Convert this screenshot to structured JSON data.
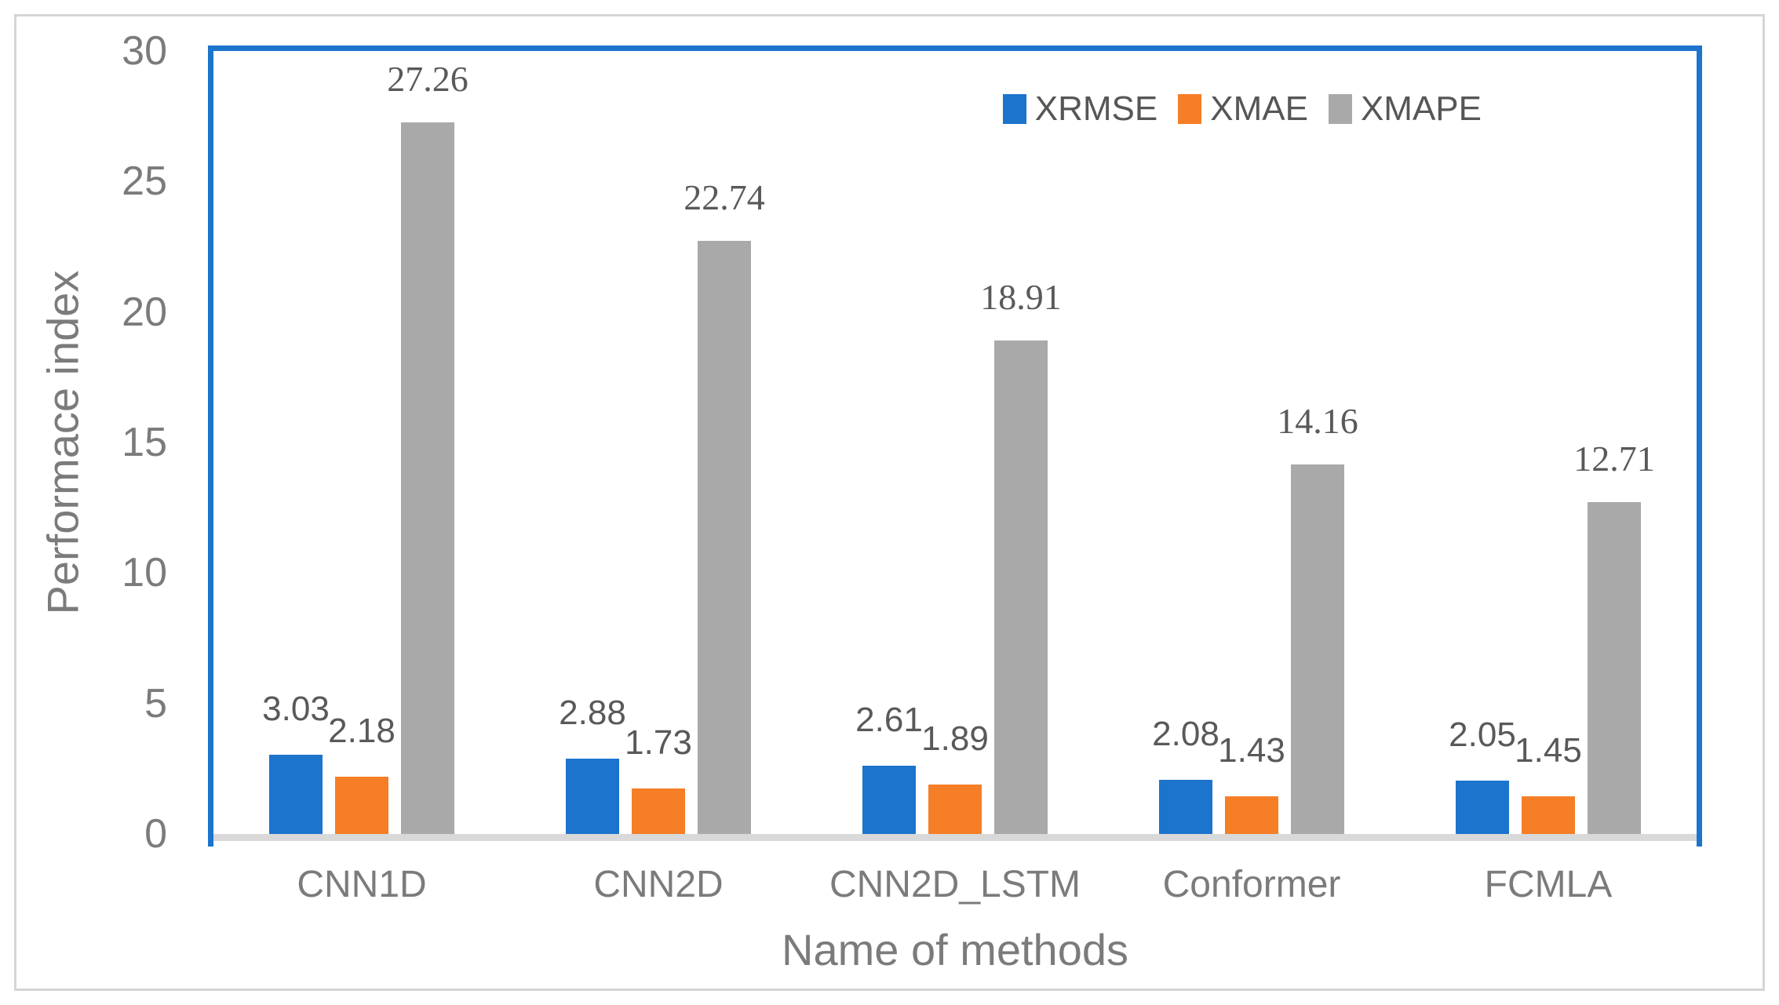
{
  "chart_data": {
    "type": "bar",
    "title": "",
    "xlabel": "Name of methods",
    "ylabel": "Performace index",
    "categories": [
      "CNN1D",
      "CNN2D",
      "CNN2D_LSTM",
      "Conformer",
      "FCMLA"
    ],
    "series": [
      {
        "name": "XRMSE",
        "color": "#1C74CC",
        "label_style": "sans",
        "values": [
          3.03,
          2.88,
          2.61,
          2.08,
          2.05
        ]
      },
      {
        "name": "XMAE",
        "color": "#F57E27",
        "label_style": "sans",
        "values": [
          2.18,
          1.73,
          1.89,
          1.43,
          1.45
        ]
      },
      {
        "name": "XMAPE",
        "color": "#A9A9A9",
        "label_style": "serif",
        "values": [
          27.26,
          22.74,
          18.91,
          14.16,
          12.71
        ]
      }
    ],
    "ylim": [
      0,
      30
    ],
    "yticks": [
      0,
      5,
      10,
      15,
      20,
      25,
      30
    ],
    "grid": false,
    "legend_position": "top-right",
    "data_labels": true
  },
  "colors": {
    "plot_border": "#1C74CC",
    "axis_line": "#D9D9D9",
    "outer_frame": "#D5D5D5",
    "axis_text": "#7B7B7B",
    "label_text": "#595959"
  }
}
